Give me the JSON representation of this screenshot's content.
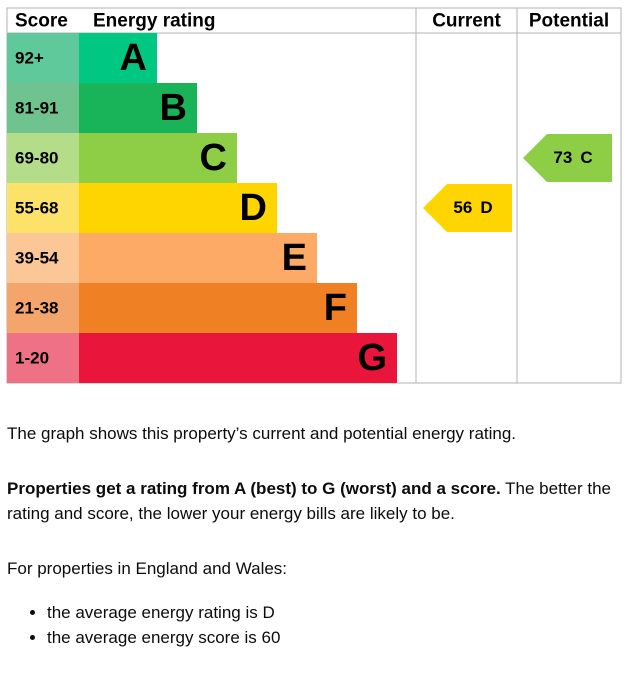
{
  "epc": {
    "headers": [
      "Score",
      "Energy rating",
      "Current",
      "Potential"
    ],
    "bands": [
      {
        "score": "92+",
        "letter": "A",
        "color": "#00c781",
        "score_color": "#5fc99c"
      },
      {
        "score": "81-91",
        "letter": "B",
        "color": "#19b459",
        "score_color": "#6ec38e"
      },
      {
        "score": "69-80",
        "letter": "C",
        "color": "#8dce46",
        "score_color": "#b3dd88"
      },
      {
        "score": "55-68",
        "letter": "D",
        "color": "#ffd500",
        "score_color": "#fde26a"
      },
      {
        "score": "39-54",
        "letter": "E",
        "color": "#fcaa65",
        "score_color": "#fcc797"
      },
      {
        "score": "21-38",
        "letter": "F",
        "color": "#ef8023",
        "score_color": "#f3a56c"
      },
      {
        "score": "1-20",
        "letter": "G",
        "color": "#e9153b",
        "score_color": "#ef7185"
      }
    ],
    "current": {
      "score": 56,
      "letter": "D"
    },
    "potential": {
      "score": 73,
      "letter": "C"
    }
  },
  "text": {
    "p1": "The graph shows this property’s current and potential energy rating.",
    "p2_bold": "Properties get a rating from A (best) to G (worst) and a score.",
    "p2_rest": "The better the rating and score, the lower your energy bills are likely to be.",
    "p3": "For properties in England and Wales:",
    "list": [
      "the average energy rating is D",
      "the average energy score is 60"
    ]
  }
}
